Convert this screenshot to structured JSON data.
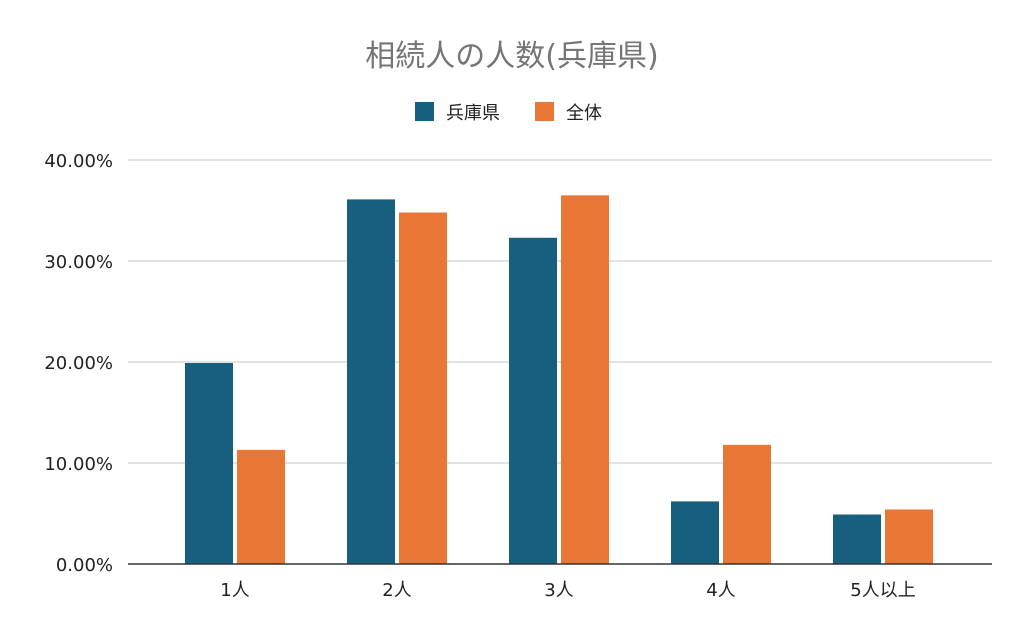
{
  "chart_data": {
    "type": "bar",
    "title": "相続人の人数(兵庫県)",
    "categories": [
      "1人",
      "2人",
      "3人",
      "4人",
      "5人以上"
    ],
    "series": [
      {
        "name": "兵庫県",
        "values": [
          19.9,
          36.1,
          32.3,
          6.2,
          4.9
        ],
        "color": "#175f7f"
      },
      {
        "name": "全体",
        "values": [
          11.3,
          34.8,
          36.5,
          11.8,
          5.4
        ],
        "color": "#e87634"
      }
    ],
    "ylim": [
      0,
      40
    ],
    "yticks": [
      "0.00%",
      "10.00%",
      "20.00%",
      "30.00%",
      "40.00%"
    ],
    "ytick_values": [
      0,
      10,
      20,
      30,
      40
    ],
    "grid": true,
    "legend_position": "top-center",
    "colors": {
      "title": "#757575",
      "grid": "#d9d9d9",
      "axis": "#333333",
      "text": "#222222"
    }
  }
}
